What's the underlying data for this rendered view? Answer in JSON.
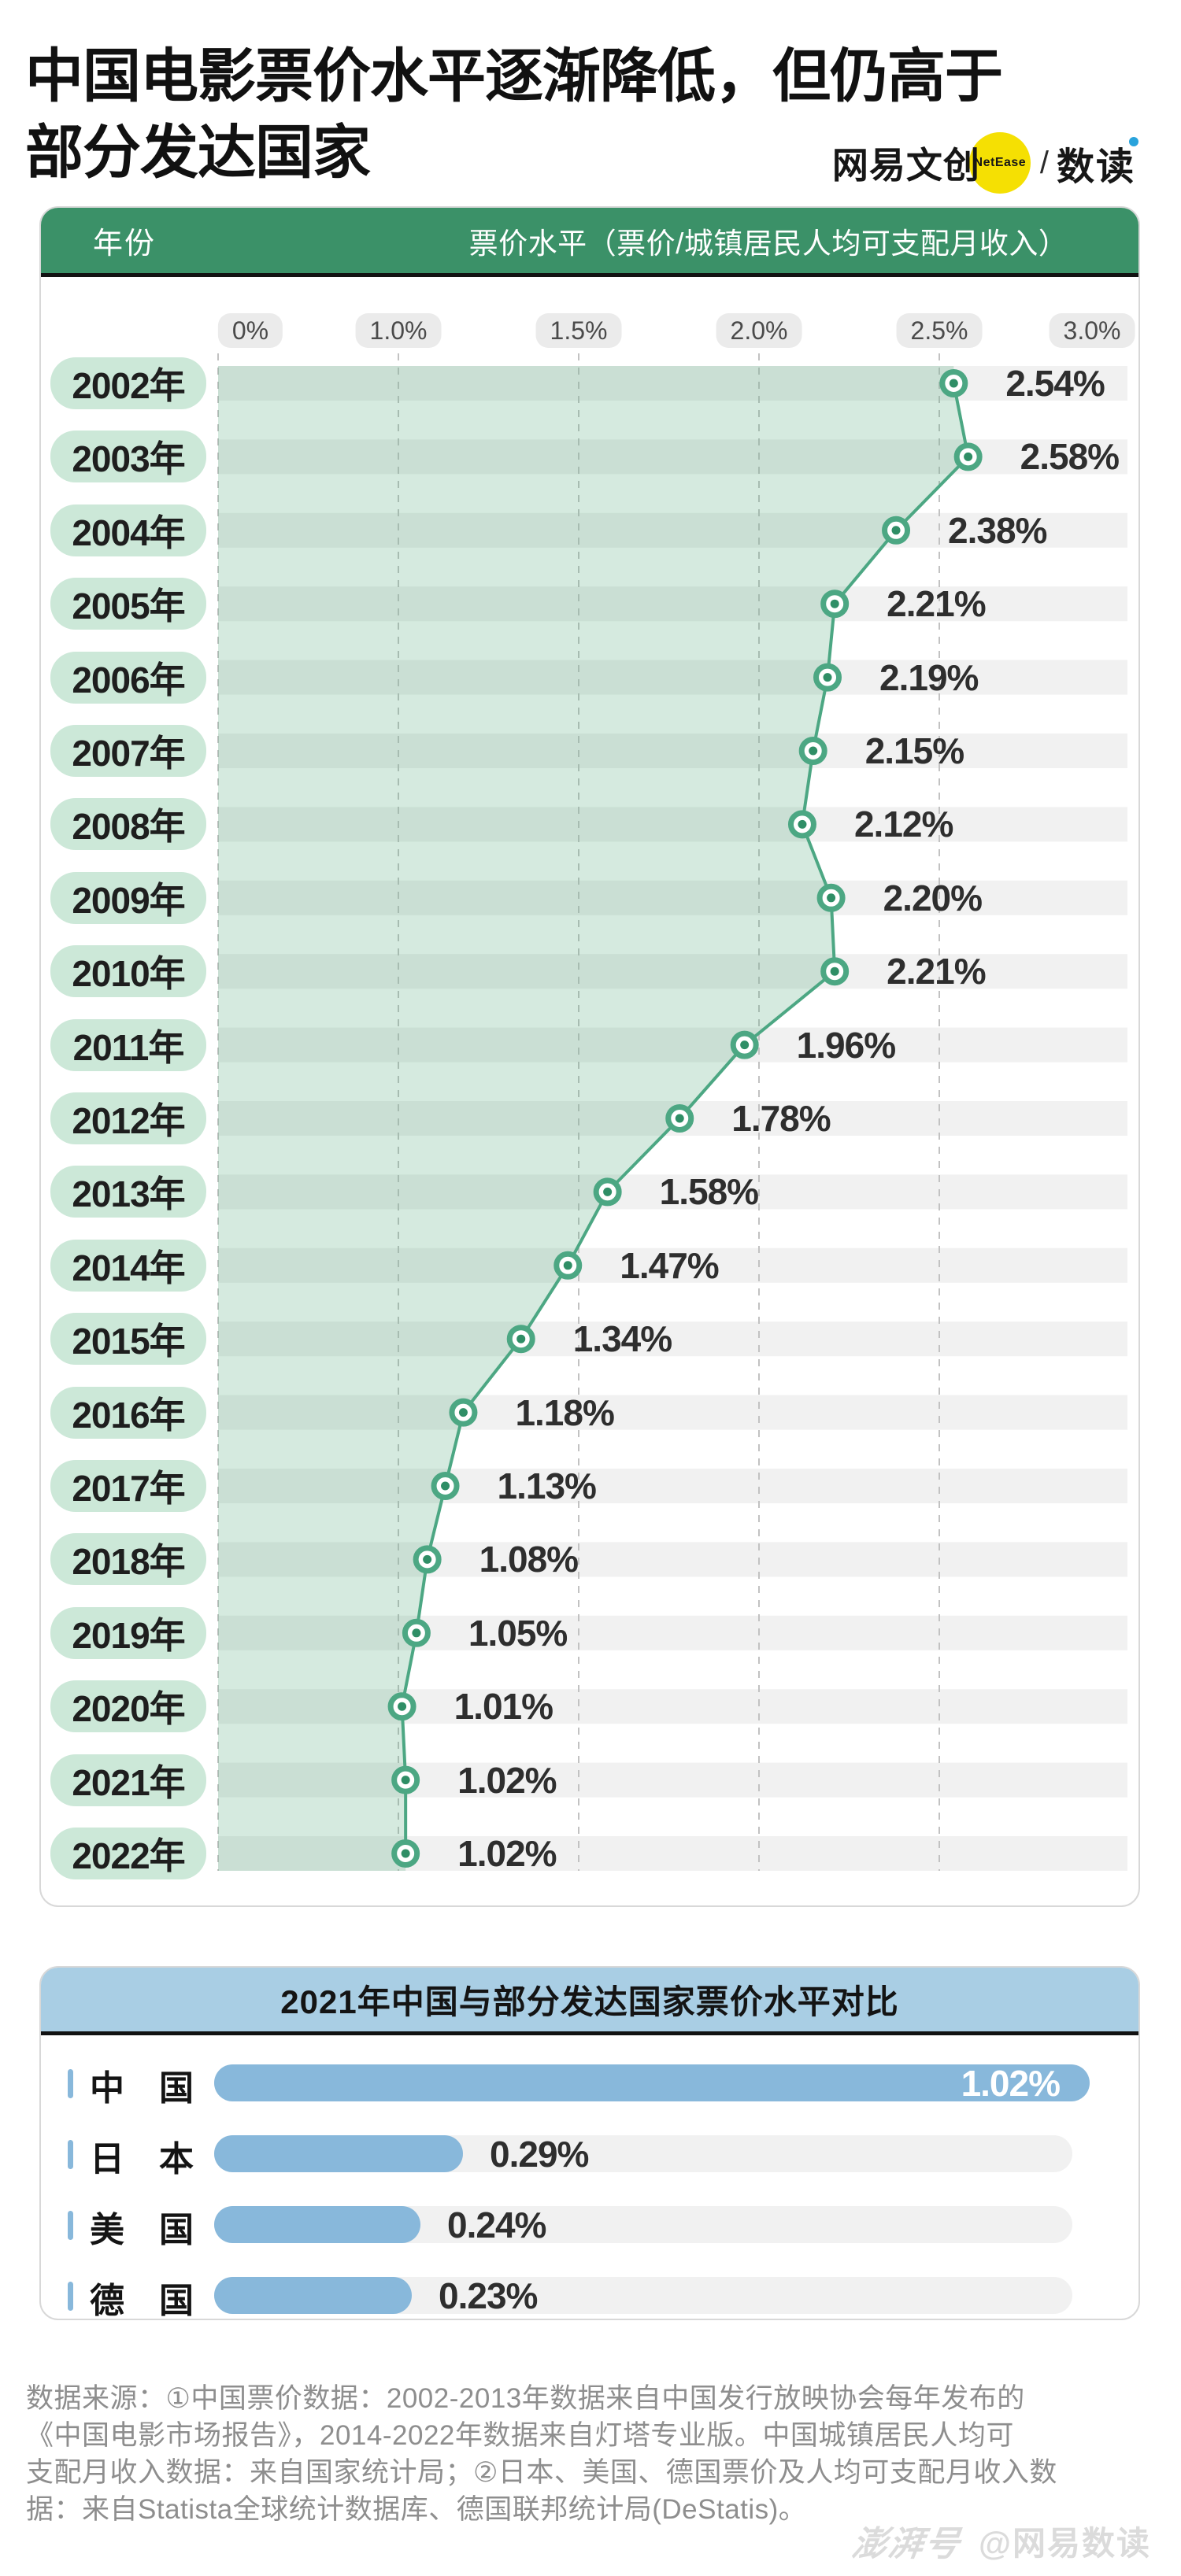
{
  "title": {
    "line1": "中国电影票价水平逐渐降低，但仍高于",
    "line2": "部分发达国家"
  },
  "brand": {
    "wangyi_wenchuang": "网易文创",
    "netease": "NetEase",
    "slash": "/",
    "shudu": "数读"
  },
  "table_header": {
    "year_col": "年份",
    "value_col": "票价水平（票价/城镇居民人均可支配月收入）"
  },
  "chart_data": [
    {
      "type": "area",
      "title": "票价水平（票价/城镇居民人均可支配月收入）",
      "layout": "vertical timeline, one row per year; broken x-axis: 0–1.0% spans one grid step, then 0.5% per step; dashed gridlines",
      "x_axis": {
        "tick_labels": [
          "0%",
          "1.0%",
          "1.5%",
          "2.0%",
          "2.5%",
          "3.0%"
        ],
        "tick_values": [
          0,
          1.0,
          1.5,
          2.0,
          2.5,
          3.0
        ],
        "gridline_values": [
          0,
          1.0,
          1.5,
          2.0,
          2.5
        ]
      },
      "categories": [
        "2002年",
        "2003年",
        "2004年",
        "2005年",
        "2006年",
        "2007年",
        "2008年",
        "2009年",
        "2010年",
        "2011年",
        "2012年",
        "2013年",
        "2014年",
        "2015年",
        "2016年",
        "2017年",
        "2018年",
        "2019年",
        "2020年",
        "2021年",
        "2022年"
      ],
      "values": [
        2.54,
        2.58,
        2.38,
        2.21,
        2.19,
        2.15,
        2.12,
        2.2,
        2.21,
        1.96,
        1.78,
        1.58,
        1.47,
        1.34,
        1.18,
        1.13,
        1.08,
        1.05,
        1.01,
        1.02,
        1.02
      ],
      "value_labels": [
        "2.54%",
        "2.58%",
        "2.38%",
        "2.21%",
        "2.19%",
        "2.15%",
        "2.12%",
        "2.20%",
        "2.21%",
        "1.96%",
        "1.78%",
        "1.58%",
        "1.47%",
        "1.34%",
        "1.18%",
        "1.13%",
        "1.08%",
        "1.05%",
        "1.01%",
        "1.02%",
        "1.02%"
      ]
    },
    {
      "type": "bar",
      "orientation": "horizontal",
      "title": "2021年中国与部分发达国家票价水平对比",
      "categories": [
        "中　国",
        "日　本",
        "美　国",
        "德　国"
      ],
      "values": [
        1.02,
        0.29,
        0.24,
        0.23
      ],
      "value_labels": [
        "1.02%",
        "0.29%",
        "0.24%",
        "0.23%"
      ],
      "xlim": [
        0,
        1.02
      ],
      "track_max": 1.0,
      "value_label_position": [
        "inside-right",
        "outside",
        "outside",
        "outside"
      ]
    }
  ],
  "footer": {
    "source_lines": [
      "数据来源：①中国票价数据：2002-2013年数据来自中国发行放映协会每年发布的",
      "《中国电影市场报告》，2014-2022年数据来自灯塔专业版。中国城镇居民人均可",
      "支配月收入数据：来自国家统计局；②日本、美国、德国票价及人均可支配月收入数",
      "据：来自Statista全球统计数据库、德国联邦统计局(DeStatis)。"
    ],
    "watermark_logo": "澎湃号",
    "watermark_handle": "@网易数读"
  },
  "colors": {
    "green_header": "#3B9168",
    "mint_pill": "#CCE8D8",
    "row_stripe": "#F1F1F1",
    "trend_line": "#4CA783",
    "marker_dot": "#2F8E66",
    "area_fill": "rgba(92,172,133,0.26)",
    "blue_header": "#A9CEE4",
    "bar_blue": "#88B8DB",
    "brand_yellow": "#F5E003",
    "brand_dot_blue": "#29A3DC",
    "footer_gray": "#8E8E8E"
  }
}
